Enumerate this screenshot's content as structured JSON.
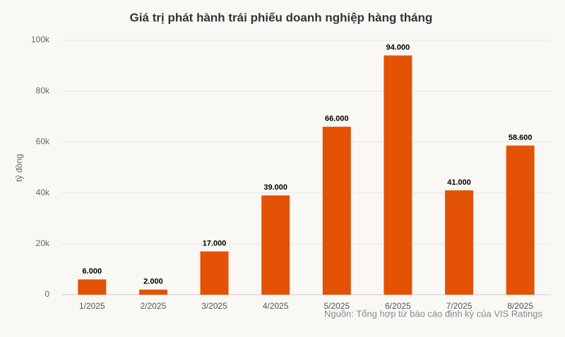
{
  "chart_data": {
    "type": "bar",
    "title": "Giá trị phát hành trái phiếu doanh nghiệp hàng tháng",
    "y_label": "tỷ đồng",
    "source": "Nguồn: Tổng hợp từ báo cáo định kỳ của VIS Ratings",
    "categories": [
      "1/2025",
      "2/2025",
      "3/2025",
      "4/2025",
      "5/2025",
      "6/2025",
      "7/2025",
      "8/2025"
    ],
    "values": [
      6000,
      2000,
      17000,
      39000,
      66000,
      94000,
      41000,
      58600
    ],
    "value_labels": [
      "6.000",
      "2.000",
      "17.000",
      "39.000",
      "66.000",
      "94.000",
      "41.000",
      "58.600"
    ],
    "color": "#e35205",
    "ylim": [
      0,
      100000
    ],
    "yticks": [
      0,
      {
        "value": 20000,
        "label": "20k"
      },
      {
        "value": 40000,
        "label": "40k"
      },
      {
        "value": 60000,
        "label": "60k"
      },
      {
        "value": 80000,
        "label": "80k"
      },
      {
        "value": 100000,
        "label": "100k"
      }
    ],
    "grid": true
  }
}
